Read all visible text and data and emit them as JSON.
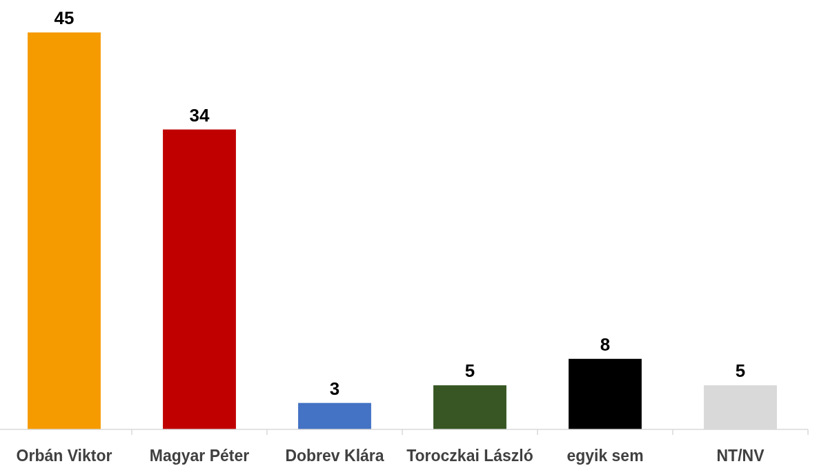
{
  "chart_data": {
    "type": "bar",
    "categories": [
      "Orbán Viktor",
      "Magyar Péter",
      "Dobrev Klára",
      "Toroczkai László",
      "egyik sem",
      "NT/NV"
    ],
    "values": [
      45,
      34,
      3,
      5,
      8,
      5
    ],
    "colors": [
      "#f59b00",
      "#c00000",
      "#4472c4",
      "#375623",
      "#000000",
      "#d9d9d9"
    ],
    "data_labels": true
  }
}
